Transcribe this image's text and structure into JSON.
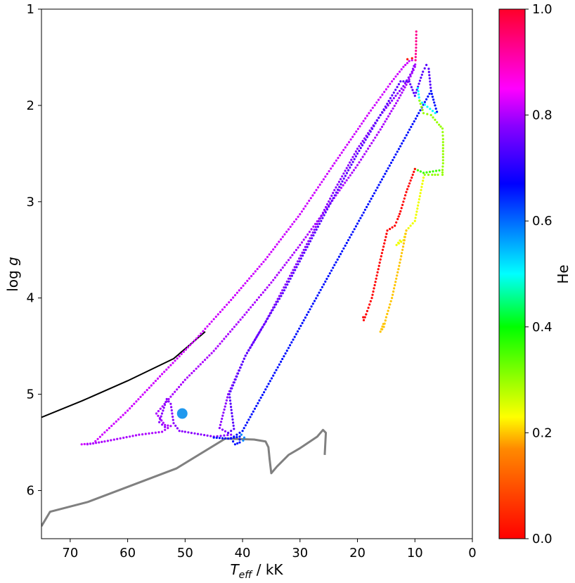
{
  "chart_data": {
    "type": "scatter",
    "title": "",
    "xlabel": {
      "main": "T",
      "sub": "eff",
      "rest": " / kK"
    },
    "ylabel": {
      "main": "log ",
      "ital": "g"
    },
    "xlim": [
      75,
      0
    ],
    "ylim": [
      6.5,
      1.0
    ],
    "x_ticks": [
      70,
      60,
      50,
      40,
      30,
      20,
      10,
      0
    ],
    "y_ticks": [
      1,
      2,
      3,
      4,
      5,
      6
    ],
    "grid": false,
    "colorbar": {
      "label": "He",
      "range": [
        0.0,
        1.0
      ],
      "ticks": [
        "0.0",
        "0.2",
        "0.4",
        "0.6",
        "0.8",
        "1.0"
      ],
      "colormap": "gist_rainbow"
    },
    "series": [
      {
        "style": "line",
        "color": "#000000",
        "points": [
          [
            75,
            5.24
          ],
          [
            68,
            5.07
          ],
          [
            60,
            4.86
          ],
          [
            52,
            4.63
          ],
          [
            46.5,
            4.35
          ]
        ]
      },
      {
        "style": "line",
        "color": "#808080",
        "points": [
          [
            75,
            6.37
          ],
          [
            73.5,
            6.22
          ],
          [
            67,
            6.12
          ],
          [
            51.5,
            5.77
          ],
          [
            43,
            5.46
          ],
          [
            38,
            5.47
          ],
          [
            36,
            5.49
          ],
          [
            35.5,
            5.55
          ],
          [
            35.3,
            5.67
          ],
          [
            35,
            5.82
          ],
          [
            34,
            5.75
          ],
          [
            32,
            5.63
          ],
          [
            30,
            5.56
          ],
          [
            27,
            5.44
          ],
          [
            26,
            5.37
          ],
          [
            25.5,
            5.4
          ],
          [
            25.7,
            5.63
          ]
        ]
      },
      {
        "style": "dots",
        "color_value": 0.82,
        "points": [
          [
            68,
            5.52
          ],
          [
            66,
            5.51
          ],
          [
            60,
            5.17
          ],
          [
            54,
            4.79
          ],
          [
            48,
            4.42
          ],
          [
            42,
            4.02
          ],
          [
            36,
            3.6
          ],
          [
            30,
            3.13
          ],
          [
            24,
            2.6
          ],
          [
            18,
            2.08
          ],
          [
            14,
            1.75
          ],
          [
            12,
            1.6
          ],
          [
            11,
            1.54
          ],
          [
            10.5,
            1.53
          ],
          [
            10.2,
            1.57
          ]
        ]
      },
      {
        "style": "dots",
        "color_value": 0.8,
        "points": [
          [
            67,
            5.52
          ],
          [
            64,
            5.49
          ],
          [
            58,
            5.42
          ],
          [
            54,
            5.39
          ],
          [
            52.5,
            5.33
          ],
          [
            53.5,
            5.32
          ],
          [
            55,
            5.2
          ],
          [
            50,
            4.85
          ],
          [
            45,
            4.55
          ],
          [
            40,
            4.2
          ],
          [
            35,
            3.84
          ],
          [
            30,
            3.45
          ],
          [
            25,
            3.04
          ],
          [
            20,
            2.62
          ],
          [
            16,
            2.25
          ],
          [
            13,
            1.95
          ],
          [
            11,
            1.73
          ],
          [
            10,
            1.6
          ],
          [
            9.9,
            1.55
          ]
        ]
      },
      {
        "style": "dots",
        "color_value": 0.78,
        "points": [
          [
            53.5,
            5.34
          ],
          [
            54.5,
            5.29
          ],
          [
            53.2,
            5.05
          ],
          [
            52.5,
            5.1
          ],
          [
            52,
            5.3
          ],
          [
            51,
            5.38
          ],
          [
            50,
            5.39
          ],
          [
            45,
            5.44
          ],
          [
            42,
            5.42
          ],
          [
            44,
            5.35
          ],
          [
            42.5,
            5.0
          ],
          [
            39.5,
            4.6
          ],
          [
            36,
            4.25
          ],
          [
            32,
            3.8
          ],
          [
            28,
            3.35
          ],
          [
            24,
            2.88
          ],
          [
            20,
            2.45
          ],
          [
            16,
            2.1
          ],
          [
            12,
            1.8
          ],
          [
            10.5,
            1.65
          ],
          [
            10,
            1.56
          ]
        ]
      },
      {
        "style": "dots",
        "color_value": 0.74,
        "points": [
          [
            42.5,
            5.4
          ],
          [
            41.5,
            5.36
          ],
          [
            42.3,
            5.0
          ],
          [
            39.5,
            4.6
          ],
          [
            36.5,
            4.3
          ],
          [
            33,
            3.95
          ],
          [
            29,
            3.5
          ],
          [
            25,
            3.05
          ],
          [
            20,
            2.5
          ],
          [
            16,
            2.1
          ],
          [
            12.5,
            1.75
          ],
          [
            11,
            1.75
          ],
          [
            10,
            1.9
          ],
          [
            8.6,
            1.65
          ],
          [
            8,
            1.58
          ],
          [
            7.6,
            1.62
          ],
          [
            7.2,
            1.85
          ]
        ]
      },
      {
        "style": "dots",
        "color_value": 0.66,
        "points": [
          [
            45,
            5.45
          ],
          [
            42.5,
            5.46
          ],
          [
            40.5,
            5.44
          ],
          [
            40.5,
            5.5
          ],
          [
            41.3,
            5.52
          ],
          [
            42,
            5.46
          ],
          [
            40,
            5.38
          ],
          [
            7.2,
            1.85
          ],
          [
            6.5,
            2.0
          ],
          [
            6,
            2.1
          ]
        ]
      },
      {
        "style": "dots",
        "color_value": 0.58,
        "points": [
          [
            40.2,
            5.42
          ],
          [
            39.7,
            5.45
          ],
          [
            40.1,
            5.51
          ]
        ]
      },
      {
        "style": "dots",
        "color_value": 0.5,
        "points": [
          [
            9.5,
            1.82
          ],
          [
            9.2,
            1.95
          ],
          [
            6,
            2.1
          ]
        ]
      },
      {
        "style": "dots",
        "color_value": 0.3,
        "points": [
          [
            9.2,
            1.95
          ],
          [
            8.5,
            2.08
          ],
          [
            7.2,
            2.1
          ],
          [
            5.8,
            2.2
          ],
          [
            5.2,
            2.24
          ],
          [
            5.1,
            2.35
          ],
          [
            5.1,
            2.6
          ],
          [
            5.2,
            2.67
          ],
          [
            5.2,
            2.72
          ],
          [
            6,
            2.72
          ],
          [
            7,
            2.72
          ],
          [
            8.3,
            2.72
          ],
          [
            8.5,
            2.75
          ]
        ]
      },
      {
        "style": "dots",
        "color_value": 0.36,
        "points": [
          [
            10,
            2.66
          ],
          [
            8.5,
            2.7
          ],
          [
            5.2,
            2.67
          ]
        ]
      },
      {
        "style": "dots",
        "color_value": 0.24,
        "points": [
          [
            8.5,
            2.75
          ],
          [
            10,
            3.2
          ],
          [
            11.5,
            3.3
          ],
          [
            12,
            3.4
          ],
          [
            13.2,
            3.45
          ],
          [
            12.3,
            3.38
          ]
        ]
      },
      {
        "style": "dots",
        "color_value": 0.2,
        "points": [
          [
            11.5,
            3.3
          ],
          [
            12.5,
            3.6
          ],
          [
            14,
            4.0
          ],
          [
            15,
            4.2
          ],
          [
            15.4,
            4.3
          ],
          [
            16,
            4.35
          ],
          [
            15.5,
            4.27
          ],
          [
            14.8,
            4.26
          ]
        ]
      },
      {
        "style": "dots",
        "color_value": 0.0,
        "points": [
          [
            10,
            2.66
          ],
          [
            11.5,
            2.9
          ],
          [
            12.5,
            3.1
          ],
          [
            13,
            3.18
          ],
          [
            13.5,
            3.25
          ],
          [
            14.8,
            3.3
          ],
          [
            16,
            3.6
          ],
          [
            17.5,
            4.0
          ],
          [
            18.5,
            4.17
          ],
          [
            19,
            4.2
          ],
          [
            18.9,
            4.23
          ],
          [
            18.5,
            4.17
          ]
        ]
      },
      {
        "style": "dots",
        "color_value": 0.02,
        "points": [
          [
            11.3,
            1.52
          ],
          [
            10.5,
            1.51
          ],
          [
            9.9,
            1.53
          ]
        ]
      },
      {
        "style": "dots",
        "color_value": 0.93,
        "points": [
          [
            9.9,
            1.53
          ],
          [
            9.8,
            1.4
          ],
          [
            9.75,
            1.2
          ]
        ]
      },
      {
        "style": "marker",
        "color": "#1f98ee",
        "points": [
          [
            50.5,
            5.2
          ]
        ]
      }
    ]
  }
}
